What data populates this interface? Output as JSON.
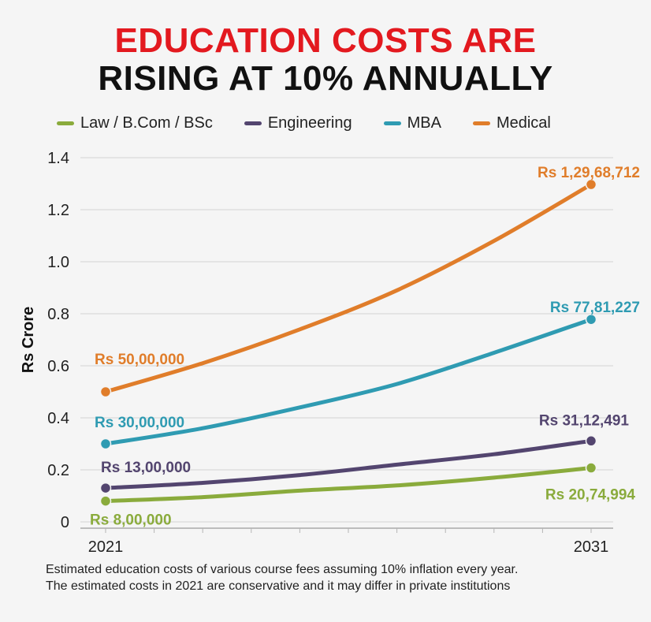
{
  "header": {
    "title_line1": "EDUCATION COSTS ARE",
    "title_line2": "RISING AT 10% ANNUALLY"
  },
  "footnote": "Estimated education costs of various course fees assuming 10% inflation every year. The estimated costs in 2021 are conservative and it may differ in private institutions",
  "chart_data": {
    "type": "line",
    "title": "EDUCATION COSTS ARE RISING AT 10% ANNUALLY",
    "xlabel": "",
    "ylabel": "Rs Crore",
    "x_ticks": [
      "2021",
      "2031"
    ],
    "xlim": [
      2021,
      2031
    ],
    "ylim": [
      0,
      1.4
    ],
    "y_ticks": [
      "0",
      "0.2",
      "0.4",
      "0.6",
      "0.8",
      "1.0",
      "1.2",
      "1.4"
    ],
    "y_tick_values": [
      0,
      0.2,
      0.4,
      0.6,
      0.8,
      1.0,
      1.2,
      1.4
    ],
    "grid": true,
    "legend_position": "top",
    "series": [
      {
        "name": "Law / B.Com / BSc",
        "color": "#8aab3c",
        "x": [
          2021,
          2023,
          2025,
          2027,
          2029,
          2031
        ],
        "values": [
          0.08,
          0.095,
          0.12,
          0.14,
          0.17,
          0.2075
        ],
        "start_label": "Rs 8,00,000",
        "end_label": "Rs 20,74,994"
      },
      {
        "name": "Engineering",
        "color": "#53456f",
        "x": [
          2021,
          2023,
          2025,
          2027,
          2029,
          2031
        ],
        "values": [
          0.13,
          0.15,
          0.18,
          0.22,
          0.26,
          0.3112
        ],
        "start_label": "Rs 13,00,000",
        "end_label": "Rs 31,12,491"
      },
      {
        "name": "MBA",
        "color": "#2f9bb2",
        "x": [
          2021,
          2023,
          2025,
          2027,
          2029,
          2031
        ],
        "values": [
          0.3,
          0.36,
          0.44,
          0.53,
          0.65,
          0.7781
        ],
        "start_label": "Rs 30,00,000",
        "end_label": "Rs 77,81,227"
      },
      {
        "name": "Medical",
        "color": "#e07d2a",
        "x": [
          2021,
          2023,
          2025,
          2027,
          2029,
          2031
        ],
        "values": [
          0.5,
          0.61,
          0.74,
          0.89,
          1.08,
          1.2969
        ],
        "start_label": "Rs 50,00,000",
        "end_label": "Rs 1,29,68,712"
      }
    ]
  }
}
